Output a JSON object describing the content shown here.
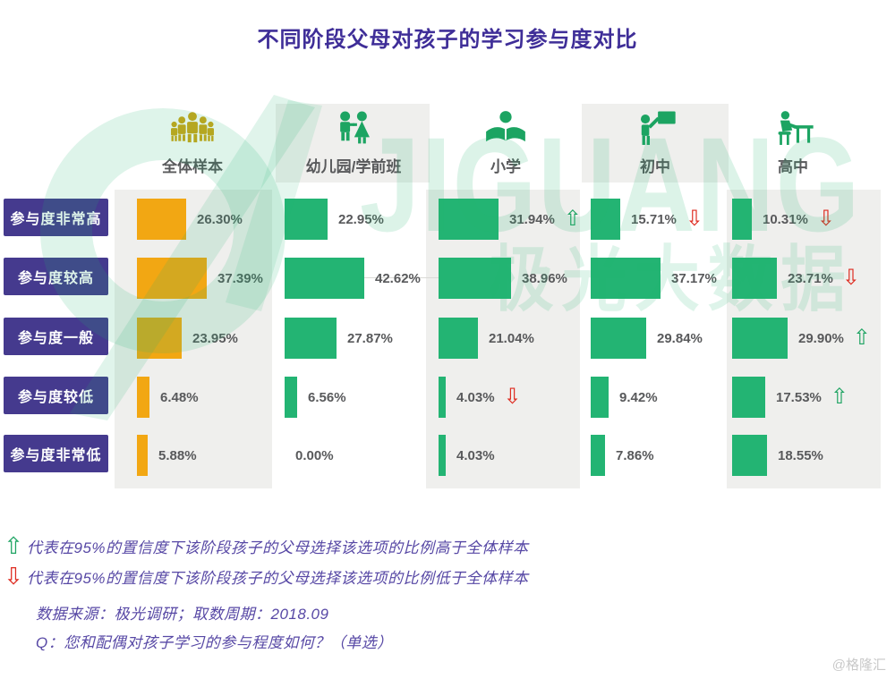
{
  "title": "不同阶段父母对孩子的学习参与度对比",
  "watermark": {
    "brand_latin": "JIGUANG",
    "brand_cn": "极光大数据"
  },
  "chart_data": {
    "type": "bar",
    "orientation": "horizontal",
    "unit": "%",
    "value_axis_note": "bar length proportional to percentage, no visible axis",
    "categories": [
      "参与度非常高",
      "参与度较高",
      "参与度一般",
      "参与度较低",
      "参与度非常低"
    ],
    "series": [
      {
        "name": "全体样本",
        "icon": "crowd-icon",
        "bar_color": "#F2A713",
        "values": [
          26.3,
          37.39,
          23.95,
          6.48,
          5.88
        ],
        "labels": [
          "26.30%",
          "37.39%",
          "23.95%",
          "6.48%",
          "5.88%"
        ],
        "significance": [
          "",
          "",
          "",
          "",
          ""
        ]
      },
      {
        "name": "幼儿园/学前班",
        "icon": "children-icon",
        "bar_color": "#23B473",
        "values": [
          22.95,
          42.62,
          27.87,
          6.56,
          0.0
        ],
        "labels": [
          "22.95%",
          "42.62%",
          "27.87%",
          "6.56%",
          "0.00%"
        ],
        "significance": [
          "",
          "",
          "",
          "",
          ""
        ]
      },
      {
        "name": "小学",
        "icon": "reading-child-icon",
        "bar_color": "#23B473",
        "values": [
          31.94,
          38.96,
          21.04,
          4.03,
          4.03
        ],
        "labels": [
          "31.94%",
          "38.96%",
          "21.04%",
          "4.03%",
          "4.03%"
        ],
        "significance": [
          "up",
          "",
          "",
          "down",
          ""
        ]
      },
      {
        "name": "初中",
        "icon": "teacher-board-icon",
        "bar_color": "#23B473",
        "values": [
          15.71,
          37.17,
          29.84,
          9.42,
          7.86
        ],
        "labels": [
          "15.71%",
          "37.17%",
          "29.84%",
          "9.42%",
          "7.86%"
        ],
        "significance": [
          "down",
          "",
          "",
          "",
          ""
        ]
      },
      {
        "name": "高中",
        "icon": "student-desk-icon",
        "bar_color": "#23B473",
        "values": [
          10.31,
          23.71,
          29.9,
          17.53,
          18.55
        ],
        "labels": [
          "10.31%",
          "23.71%",
          "29.90%",
          "17.53%",
          "18.55%"
        ],
        "significance": [
          "down",
          "down",
          "up",
          "up",
          ""
        ]
      }
    ]
  },
  "legend": {
    "up_symbol": "⇧",
    "down_symbol": "⇩",
    "up_text": "代表在95%的置信度下该阶段孩子的父母选择该选项的比例高于全体样本",
    "down_text": "代表在95%的置信度下该阶段孩子的父母选择该选项的比例低于全体样本",
    "source_text": "数据来源：极光调研；取数周期：2018.09",
    "question_text": "Q：您和配偶对孩子学习的参与程度如何？（单选）"
  },
  "footer": {
    "credit": "@格隆汇"
  },
  "colors": {
    "title_text": "#3F2E98",
    "row_label_bg": "#453A8E",
    "value_text": "#58595B",
    "panel_gray": "#EFEFED",
    "up_arrow": "#1FA463",
    "down_arrow": "#DE2A1F",
    "legend_text": "#5748A5",
    "sample_icon_gold": "#CFA513",
    "stage_icon_green": "#1CA462",
    "watermark_green": "rgba(35,180,115,0.16)"
  }
}
